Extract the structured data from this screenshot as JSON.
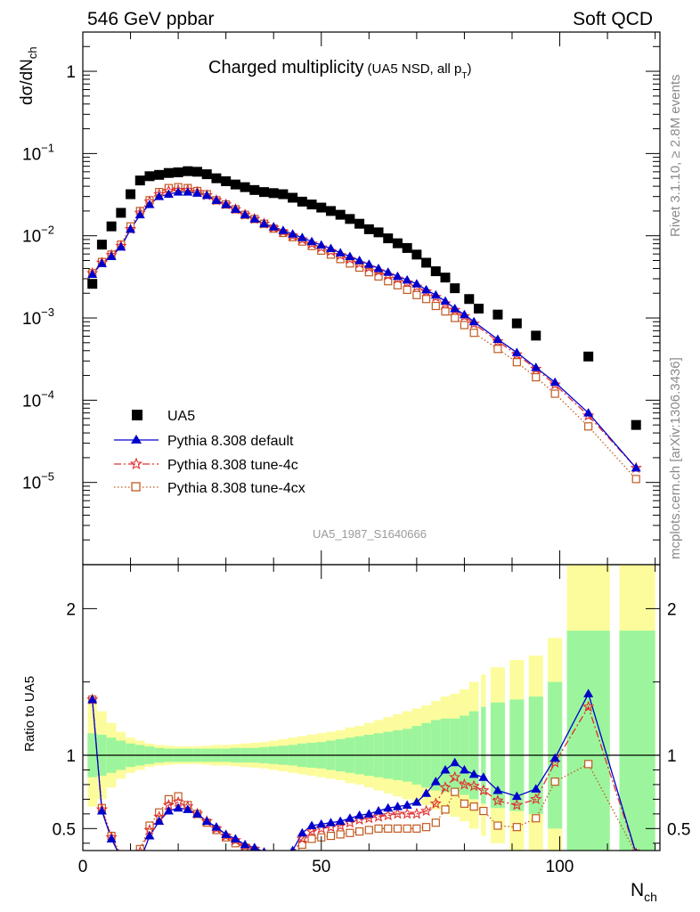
{
  "header": {
    "left": "546 GeV ppbar",
    "right": "Soft QCD"
  },
  "side_labels": {
    "rivet": "Rivet 3.1.10, ≥ 2.8M events",
    "mcplots": "mcplots.cern.ch [arXiv:1306.3436]"
  },
  "chart_data": {
    "type": "scatter",
    "title": "Charged multiplicity",
    "title_note_prefix": "(UA5 NSD, all p",
    "title_note_sub": "T",
    "title_note_suffix": ")",
    "analysis_id": "UA5_1987_S1640666",
    "ylabel_main": "dσ/dN",
    "ylabel_main_sub": "ch",
    "ylabel_ratio": "Ratio to UA5",
    "xlabel": "N",
    "xlabel_sub": "ch",
    "xlim": [
      0,
      121
    ],
    "ylim_main": [
      1e-06,
      3.0
    ],
    "yscale_main": "log",
    "ylim_ratio": [
      0.35,
      2.3
    ],
    "xticks": [
      "0",
      "50",
      "100"
    ],
    "main_yticks": [
      "1",
      "10",
      "10",
      "10",
      "10",
      "10"
    ],
    "main_ytick_exps": [
      "",
      "−1",
      "−2",
      "−3",
      "−4",
      "−5"
    ],
    "ratio_yticks": [
      "0.5",
      "1",
      "2"
    ],
    "legend": {
      "placement": "lower-left",
      "entries": [
        "UA5",
        "Pythia 8.308 default",
        "Pythia 8.308 tune-4c",
        "Pythia 8.308 tune-4cx"
      ]
    },
    "colors": {
      "data": "#000000",
      "default": "#0000cc",
      "tune4c": "#e03030",
      "tune4cx": "#c05a20",
      "band_inner": "#9cf59c",
      "band_outer": "#fcfc9c"
    },
    "data_x": [
      2,
      4,
      6,
      8,
      10,
      12,
      14,
      16,
      18,
      20,
      22,
      24,
      26,
      28,
      30,
      32,
      34,
      36,
      38,
      40,
      42,
      44,
      46,
      48,
      50,
      52,
      54,
      56,
      58,
      60,
      62,
      64,
      66,
      68,
      70,
      72,
      74,
      76,
      78,
      81,
      83,
      87,
      91,
      95,
      106,
      116
    ],
    "data_y": [
      0.0026,
      0.0078,
      0.013,
      0.019,
      0.032,
      0.047,
      0.053,
      0.055,
      0.058,
      0.059,
      0.061,
      0.06,
      0.056,
      0.05,
      0.046,
      0.042,
      0.039,
      0.036,
      0.034,
      0.033,
      0.032,
      0.029,
      0.026,
      0.024,
      0.022,
      0.02,
      0.018,
      0.016,
      0.014,
      0.012,
      0.011,
      0.0093,
      0.0081,
      0.0071,
      0.0059,
      0.0047,
      0.0037,
      0.0031,
      0.0023,
      0.0017,
      0.0013,
      0.0011,
      0.00086,
      0.00061,
      0.00034,
      5e-05
    ],
    "series": [
      {
        "name": "Pythia 8.308 default",
        "x": [
          2,
          4,
          6,
          8,
          10,
          12,
          14,
          16,
          18,
          20,
          22,
          24,
          26,
          28,
          30,
          32,
          34,
          36,
          38,
          40,
          42,
          44,
          46,
          48,
          50,
          52,
          54,
          56,
          58,
          60,
          62,
          64,
          66,
          68,
          70,
          72,
          74,
          76,
          78,
          80,
          82,
          87,
          91,
          95,
          99,
          106,
          116
        ],
        "y": [
          0.0034,
          0.0046,
          0.0056,
          0.0073,
          0.012,
          0.018,
          0.024,
          0.03,
          0.032,
          0.034,
          0.034,
          0.033,
          0.031,
          0.027,
          0.024,
          0.021,
          0.018,
          0.016,
          0.014,
          0.0128,
          0.0116,
          0.0105,
          0.0095,
          0.0085,
          0.0077,
          0.007,
          0.0062,
          0.0056,
          0.005,
          0.0045,
          0.004,
          0.0036,
          0.0032,
          0.0029,
          0.0026,
          0.0022,
          0.0019,
          0.0016,
          0.0013,
          0.0011,
          0.0009,
          0.00055,
          0.00038,
          0.00025,
          0.000165,
          7e-05,
          1.5e-05
        ],
        "ratio_x": [
          2,
          4,
          6,
          8,
          10,
          12,
          14,
          16,
          18,
          20,
          22,
          24,
          26,
          28,
          30,
          32,
          34,
          36,
          38,
          40,
          42,
          44,
          46,
          48,
          50,
          52,
          54,
          56,
          58,
          60,
          62,
          64,
          66,
          68,
          70,
          72,
          74,
          76,
          78,
          80,
          82,
          84,
          87,
          91,
          95,
          99,
          106,
          116
        ],
        "ratio_y": [
          1.38,
          0.62,
          0.43,
          0.3,
          0.18,
          0.28,
          0.45,
          0.55,
          0.62,
          0.64,
          0.63,
          0.6,
          0.55,
          0.51,
          0.46,
          0.43,
          0.39,
          0.37,
          0.34,
          0.3,
          0.31,
          0.35,
          0.47,
          0.52,
          0.53,
          0.54,
          0.55,
          0.57,
          0.59,
          0.6,
          0.62,
          0.64,
          0.65,
          0.66,
          0.68,
          0.74,
          0.82,
          0.9,
          0.95,
          0.9,
          0.87,
          0.85,
          0.76,
          0.72,
          0.77,
          0.98,
          1.42,
          0.33
        ]
      },
      {
        "name": "Pythia 8.308 tune-4c",
        "x": [
          2,
          4,
          6,
          8,
          10,
          12,
          14,
          16,
          18,
          20,
          22,
          24,
          26,
          28,
          30,
          32,
          34,
          36,
          38,
          40,
          42,
          44,
          46,
          48,
          50,
          52,
          54,
          56,
          58,
          60,
          62,
          64,
          66,
          68,
          70,
          72,
          74,
          76,
          78,
          80,
          82,
          87,
          91,
          95,
          99,
          106,
          116
        ],
        "y": [
          0.0035,
          0.0047,
          0.0058,
          0.0075,
          0.012,
          0.019,
          0.026,
          0.032,
          0.035,
          0.036,
          0.036,
          0.034,
          0.031,
          0.027,
          0.024,
          0.021,
          0.018,
          0.016,
          0.014,
          0.0125,
          0.0112,
          0.01,
          0.009,
          0.008,
          0.0072,
          0.0065,
          0.0058,
          0.0052,
          0.0046,
          0.0041,
          0.0037,
          0.0033,
          0.003,
          0.0027,
          0.0024,
          0.0021,
          0.0018,
          0.0015,
          0.00125,
          0.00105,
          0.00085,
          0.00052,
          0.00036,
          0.00024,
          0.000155,
          6.5e-05,
          1.5e-05
        ],
        "ratio_x": [
          2,
          4,
          6,
          8,
          10,
          12,
          14,
          16,
          18,
          20,
          22,
          24,
          26,
          28,
          30,
          32,
          34,
          36,
          38,
          40,
          42,
          44,
          46,
          48,
          50,
          52,
          54,
          56,
          58,
          60,
          62,
          64,
          66,
          68,
          70,
          72,
          74,
          76,
          78,
          80,
          82,
          84,
          87,
          91,
          95,
          99,
          106,
          116
        ],
        "ratio_y": [
          1.38,
          0.63,
          0.44,
          0.31,
          0.2,
          0.34,
          0.49,
          0.58,
          0.66,
          0.68,
          0.65,
          0.6,
          0.55,
          0.5,
          0.45,
          0.42,
          0.38,
          0.36,
          0.33,
          0.29,
          0.29,
          0.33,
          0.43,
          0.48,
          0.5,
          0.51,
          0.52,
          0.54,
          0.56,
          0.57,
          0.58,
          0.59,
          0.6,
          0.6,
          0.6,
          0.62,
          0.67,
          0.78,
          0.85,
          0.8,
          0.79,
          0.76,
          0.69,
          0.66,
          0.7,
          0.95,
          1.33,
          0.33
        ]
      },
      {
        "name": "Pythia 8.308 tune-4cx",
        "x": [
          2,
          4,
          6,
          8,
          10,
          12,
          14,
          16,
          18,
          20,
          22,
          24,
          26,
          28,
          30,
          32,
          34,
          36,
          38,
          40,
          42,
          44,
          46,
          48,
          50,
          52,
          54,
          56,
          58,
          60,
          62,
          64,
          66,
          68,
          70,
          72,
          74,
          76,
          78,
          80,
          82,
          87,
          91,
          95,
          99,
          106,
          116
        ],
        "y": [
          0.0035,
          0.0048,
          0.0059,
          0.0078,
          0.013,
          0.02,
          0.027,
          0.034,
          0.038,
          0.039,
          0.038,
          0.035,
          0.032,
          0.027,
          0.024,
          0.021,
          0.018,
          0.016,
          0.014,
          0.0122,
          0.0108,
          0.0096,
          0.0085,
          0.0075,
          0.0066,
          0.0059,
          0.0052,
          0.0046,
          0.0041,
          0.0036,
          0.0032,
          0.0028,
          0.0025,
          0.0022,
          0.0019,
          0.0017,
          0.0014,
          0.0012,
          0.001,
          0.00082,
          0.00066,
          0.00042,
          0.00029,
          0.00019,
          0.00012,
          4.8e-05,
          1.1e-05
        ],
        "ratio_x": [
          2,
          4,
          6,
          8,
          10,
          12,
          14,
          16,
          18,
          20,
          22,
          24,
          26,
          28,
          30,
          32,
          34,
          36,
          38,
          40,
          42,
          44,
          46,
          48,
          50,
          52,
          54,
          56,
          58,
          60,
          62,
          64,
          66,
          68,
          70,
          72,
          74,
          76,
          78,
          80,
          82,
          84,
          87,
          91,
          95,
          99,
          106,
          116
        ],
        "ratio_y": [
          1.38,
          0.64,
          0.45,
          0.32,
          0.21,
          0.36,
          0.52,
          0.61,
          0.7,
          0.72,
          0.66,
          0.6,
          0.54,
          0.49,
          0.44,
          0.4,
          0.37,
          0.35,
          0.32,
          0.28,
          0.27,
          0.3,
          0.39,
          0.43,
          0.44,
          0.45,
          0.46,
          0.47,
          0.48,
          0.49,
          0.5,
          0.5,
          0.5,
          0.5,
          0.5,
          0.51,
          0.54,
          0.63,
          0.75,
          0.67,
          0.65,
          0.62,
          0.52,
          0.51,
          0.57,
          0.82,
          0.94,
          0.33
        ]
      }
    ],
    "bands": {
      "x_lo": [
        1,
        3,
        5,
        7,
        9,
        11,
        13,
        15,
        17,
        19,
        21,
        23,
        25,
        27,
        29,
        31,
        33,
        35,
        37,
        39,
        41,
        43,
        45,
        47,
        49,
        51,
        53,
        55,
        57,
        59,
        61,
        63,
        65,
        67,
        69,
        71,
        73,
        75,
        77,
        79,
        81,
        83.5,
        85.5,
        89.5,
        93.5,
        97.5,
        101.5,
        112.5
      ],
      "x_hi": [
        3,
        5,
        7,
        9,
        11,
        13,
        15,
        17,
        19,
        21,
        23,
        25,
        27,
        29,
        31,
        33,
        35,
        37,
        39,
        41,
        43,
        45,
        47,
        49,
        51,
        53,
        55,
        57,
        59,
        61,
        63,
        65,
        67,
        69,
        71,
        73,
        75,
        77,
        79,
        81,
        83,
        84.5,
        88.5,
        92.5,
        96.5,
        100.5,
        110.5,
        120
      ],
      "inner": [
        0.15,
        0.14,
        0.12,
        0.1,
        0.08,
        0.07,
        0.06,
        0.05,
        0.045,
        0.045,
        0.045,
        0.045,
        0.045,
        0.045,
        0.045,
        0.05,
        0.05,
        0.05,
        0.055,
        0.06,
        0.065,
        0.07,
        0.08,
        0.085,
        0.09,
        0.1,
        0.11,
        0.12,
        0.13,
        0.14,
        0.15,
        0.16,
        0.17,
        0.18,
        0.2,
        0.22,
        0.24,
        0.25,
        0.25,
        0.27,
        0.3,
        0.33,
        0.36,
        0.38,
        0.4,
        0.5,
        0.85,
        0.85
      ],
      "outer": [
        0.35,
        0.3,
        0.22,
        0.16,
        0.12,
        0.1,
        0.08,
        0.07,
        0.065,
        0.06,
        0.06,
        0.06,
        0.065,
        0.07,
        0.07,
        0.075,
        0.08,
        0.085,
        0.09,
        0.1,
        0.11,
        0.12,
        0.13,
        0.14,
        0.15,
        0.16,
        0.17,
        0.19,
        0.2,
        0.22,
        0.24,
        0.26,
        0.28,
        0.3,
        0.32,
        0.34,
        0.37,
        0.4,
        0.42,
        0.45,
        0.5,
        0.55,
        0.6,
        0.65,
        0.68,
        0.8,
        1.3,
        1.3
      ]
    }
  }
}
